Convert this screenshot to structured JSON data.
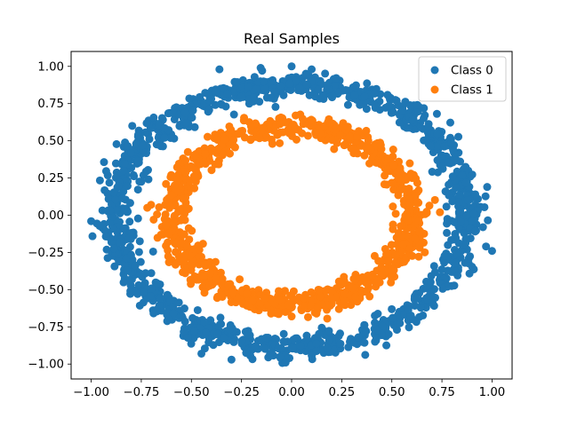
{
  "chart_data": {
    "type": "scatter",
    "title": "Real Samples",
    "xlabel": "",
    "ylabel": "",
    "xlim": [
      -1.1,
      1.1
    ],
    "ylim": [
      -1.1,
      1.1
    ],
    "xticks": [
      -1.0,
      -0.75,
      -0.5,
      -0.25,
      0.0,
      0.25,
      0.5,
      0.75,
      1.0
    ],
    "xtick_labels": [
      "−1.00",
      "−0.75",
      "−0.50",
      "−0.25",
      "0.00",
      "0.25",
      "0.50",
      "0.75",
      "1.00"
    ],
    "yticks": [
      -1.0,
      -0.75,
      -0.5,
      -0.25,
      0.0,
      0.25,
      0.5,
      0.75,
      1.0
    ],
    "ytick_labels": [
      "−1.00",
      "−0.75",
      "−0.50",
      "−0.25",
      "0.00",
      "0.25",
      "0.50",
      "0.75",
      "1.00"
    ],
    "grid": false,
    "legend_position": "top-right",
    "series": [
      {
        "name": "Class 0",
        "color": "#1f77b4",
        "shape": "ring",
        "center": [
          0.0,
          0.0
        ],
        "radius_x": 0.88,
        "radius_y": 0.88,
        "spread": 0.045,
        "point_count": 1200,
        "outliers": [
          [
            0.0,
            1.0
          ],
          [
            -0.36,
            0.98
          ],
          [
            1.0,
            -0.24
          ],
          [
            -0.03,
            -0.99
          ],
          [
            -1.0,
            -0.04
          ],
          [
            -0.3,
            -0.97
          ],
          [
            -0.45,
            -0.93
          ],
          [
            0.97,
            -0.21
          ],
          [
            0.1,
            0.98
          ]
        ]
      },
      {
        "name": "Class 1",
        "color": "#ff7f0e",
        "shape": "ring",
        "center": [
          0.0,
          0.0
        ],
        "radius_x": 0.6,
        "radius_y": 0.6,
        "spread": 0.04,
        "point_count": 1000,
        "outliers": [
          [
            -0.72,
            0.05
          ],
          [
            0.74,
            0.02
          ],
          [
            0.02,
            0.67
          ],
          [
            0.0,
            -0.68
          ],
          [
            -0.48,
            0.4
          ],
          [
            0.5,
            -0.42
          ]
        ]
      }
    ]
  }
}
